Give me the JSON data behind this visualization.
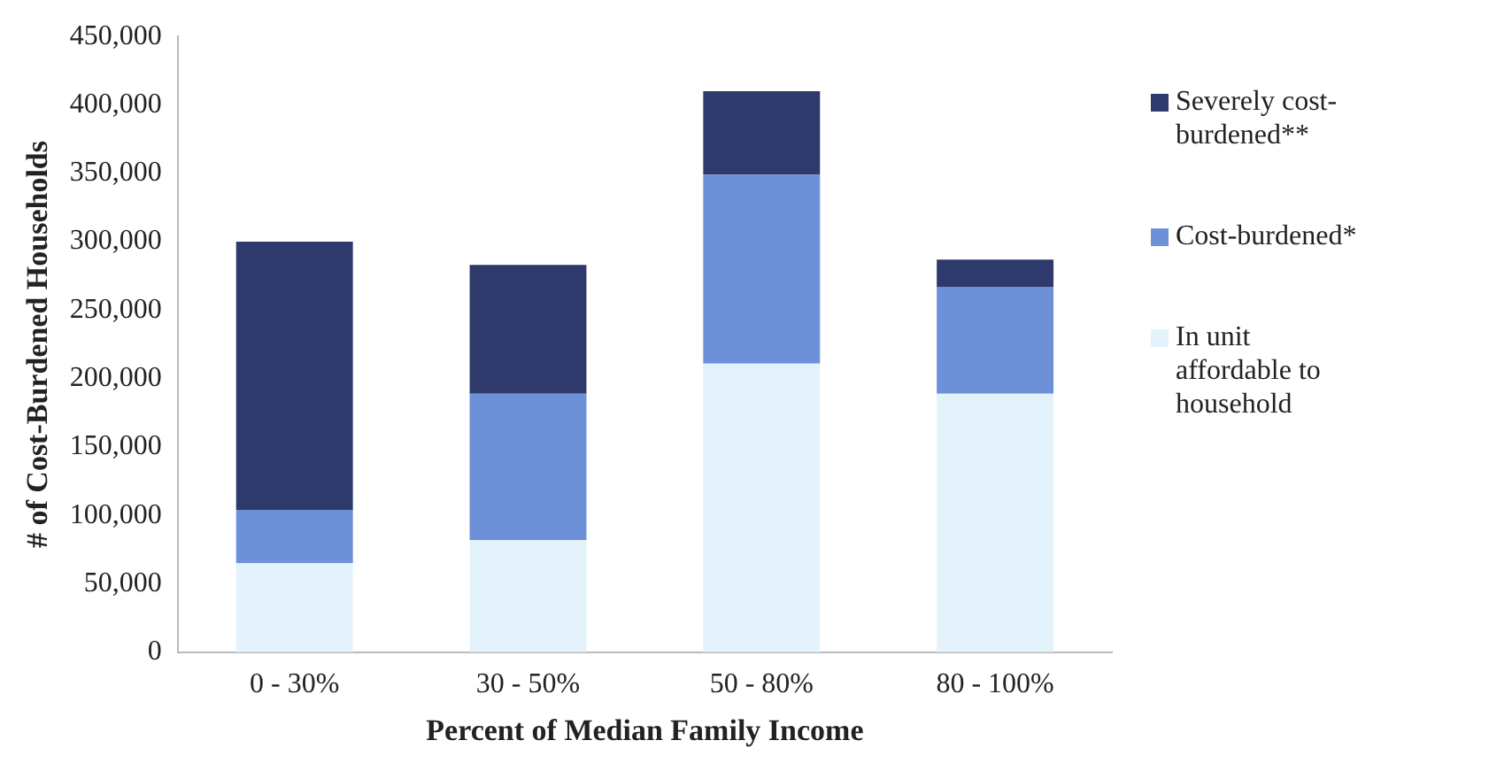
{
  "chart_data": {
    "type": "bar",
    "stacked": true,
    "xlabel": "Percent of Median Family Income",
    "ylabel": "# of Cost-Burdened Households",
    "categories": [
      "0 - 30%",
      "30 - 50%",
      "50 - 80%",
      "80 - 100%"
    ],
    "series": [
      {
        "name": "In unit affordable to household",
        "color": "#e4f3fb",
        "values": [
          65000,
          82000,
          211000,
          189000
        ]
      },
      {
        "name": "Cost-burdened*",
        "color": "#6d90d8",
        "values": [
          39000,
          107000,
          138000,
          78000
        ]
      },
      {
        "name": "Severely cost-burdened**",
        "color": "#2f3a6c",
        "values": [
          196000,
          94000,
          61000,
          20000
        ]
      }
    ],
    "ylim": [
      0,
      450000
    ],
    "yticks": [
      0,
      {
        "value": 50000,
        "label": "50,000"
      },
      {
        "value": 100000,
        "label": "100,000"
      },
      {
        "value": 150000,
        "label": "150,000"
      },
      {
        "value": 200000,
        "label": "200,000"
      },
      {
        "value": 250000,
        "label": "250,000"
      },
      {
        "value": 300000,
        "label": "300,000"
      },
      {
        "value": 350000,
        "label": "350,000"
      },
      {
        "value": 400000,
        "label": "400,000"
      },
      {
        "value": 450000,
        "label": "450,000"
      }
    ],
    "grid": false,
    "legend": "right"
  }
}
